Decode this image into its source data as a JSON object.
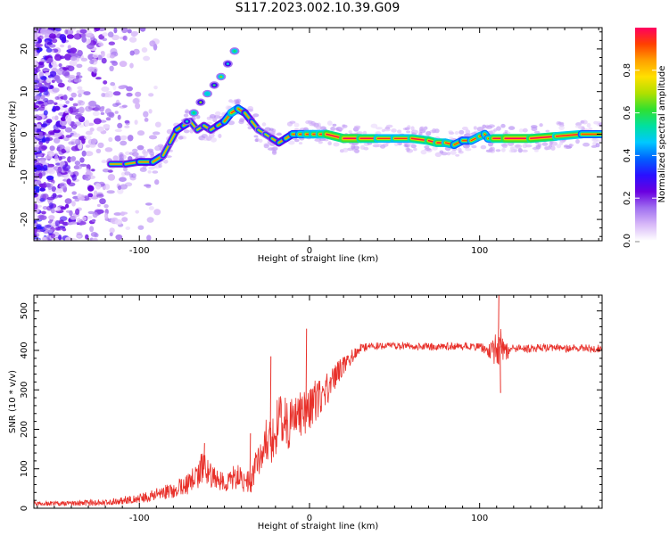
{
  "figure": {
    "title": "S117.2023.002.10.39.G09"
  },
  "chart_data": [
    {
      "type": "heatmap",
      "name": "spectrogram",
      "xlabel": "Height of straight line (km)",
      "ylabel": "Frequency (Hz)",
      "xlim": [
        -162,
        172
      ],
      "ylim": [
        -25,
        25
      ],
      "x_ticks": [
        -100,
        0,
        100
      ],
      "x_tick_labels": [
        "-100",
        "0",
        "100"
      ],
      "y_ticks": [
        -20,
        -10,
        0,
        10,
        20
      ],
      "y_tick_labels": [
        "-20",
        "-10",
        "0",
        "10",
        "20"
      ],
      "grid": false,
      "ridge": {
        "x": [
          -117,
          -108,
          -100,
          -92,
          -86,
          -82,
          -78,
          -74,
          -70,
          -66,
          -62,
          -58,
          -54,
          -50,
          -46,
          -42,
          -38,
          -34,
          -30,
          -26,
          -22,
          -18,
          -14,
          -10,
          -6,
          -2,
          2,
          6,
          10,
          20,
          30,
          40,
          50,
          60,
          70,
          75,
          80,
          85,
          90,
          95,
          100,
          103,
          105,
          108,
          115,
          130,
          145,
          160,
          172
        ],
        "y": [
          -7,
          -7,
          -6.5,
          -6.5,
          -5,
          -2,
          1,
          2,
          3,
          1,
          2,
          1,
          2,
          3,
          5,
          6,
          5,
          3,
          1,
          0,
          -1,
          -2,
          -1,
          0,
          0,
          0,
          0,
          0,
          0,
          -1,
          -1,
          -1,
          -1,
          -1,
          -1.5,
          -2,
          -2,
          -2.5,
          -1.5,
          -1.5,
          -0.5,
          0,
          -1,
          -1,
          -1,
          -1,
          -0.5,
          0,
          0
        ]
      },
      "ridge_intensity": [
        0.5,
        0.6,
        0.55,
        0.7,
        0.6,
        0.5,
        0.6,
        0.65,
        0.6,
        0.5,
        0.6,
        0.55,
        0.6,
        0.65,
        0.75,
        0.85,
        0.6,
        0.6,
        0.55,
        0.5,
        0.55,
        0.6,
        0.6,
        0.7,
        0.75,
        0.8,
        0.85,
        0.8,
        0.9,
        0.95,
        0.95,
        0.85,
        0.8,
        0.85,
        0.9,
        0.9,
        0.85,
        0.8,
        0.7,
        0.75,
        0.8,
        0.85,
        0.7,
        0.85,
        0.95,
        0.95,
        0.9,
        0.8,
        0.7
      ],
      "secondary_branch": {
        "x": [
          -72,
          -68,
          -64,
          -60,
          -56,
          -52,
          -48,
          -44
        ],
        "y": [
          3,
          5,
          7.5,
          9.5,
          11.5,
          13.5,
          16.5,
          19.5
        ]
      },
      "colorbar": {
        "label": "Normalized spectral amplitude",
        "range": [
          0,
          1
        ],
        "ticks": [
          0.0,
          0.2,
          0.4,
          0.6,
          0.8
        ],
        "tick_labels": [
          "0.0",
          "0.2",
          "0.4",
          "0.6",
          "0.8"
        ],
        "colors": [
          "#ffffff",
          "#d8b8f8",
          "#a070f0",
          "#6a00e0",
          "#2a10ff",
          "#0060ff",
          "#00c8ff",
          "#00e0a0",
          "#30e030",
          "#b0e000",
          "#ffe000",
          "#ffa000",
          "#ff4000",
          "#ff0060"
        ]
      }
    },
    {
      "type": "line",
      "name": "snr",
      "xlabel": "Height of straight line (km)",
      "ylabel": "SNR (10 * v/v)",
      "xlim": [
        -162,
        172
      ],
      "ylim": [
        0,
        540
      ],
      "x_ticks": [
        -100,
        0,
        100
      ],
      "x_tick_labels": [
        "-100",
        "0",
        "100"
      ],
      "y_ticks": [
        0,
        100,
        200,
        300,
        400,
        500
      ],
      "y_tick_labels": [
        "0",
        "100",
        "200",
        "300",
        "400",
        "500"
      ],
      "grid": false,
      "series": [
        {
          "color": "#e8302a",
          "x": [
            -162,
            -150,
            -140,
            -130,
            -120,
            -110,
            -100,
            -95,
            -90,
            -85,
            -80,
            -75,
            -70,
            -66,
            -63,
            -60,
            -57,
            -54,
            -50,
            -46,
            -42,
            -38,
            -34,
            -31,
            -28,
            -25,
            -22,
            -20,
            -18,
            -15,
            -12,
            -9,
            -6,
            -3,
            0,
            3,
            6,
            9,
            12,
            15,
            18,
            21,
            24,
            27,
            30,
            35,
            40,
            50,
            60,
            70,
            80,
            90,
            100,
            104,
            107,
            110,
            112,
            114,
            117,
            120,
            130,
            140,
            150,
            160,
            172
          ],
          "y": [
            12,
            12,
            12,
            14,
            15,
            20,
            25,
            28,
            35,
            40,
            48,
            55,
            65,
            85,
            100,
            95,
            80,
            70,
            65,
            75,
            80,
            70,
            65,
            120,
            150,
            170,
            180,
            200,
            215,
            210,
            220,
            230,
            240,
            250,
            255,
            270,
            285,
            300,
            315,
            335,
            350,
            365,
            380,
            395,
            405,
            412,
            410,
            412,
            410,
            408,
            410,
            410,
            408,
            405,
            400,
            405,
            410,
            400,
            395,
            405,
            405,
            408,
            405,
            405,
            405
          ],
          "noise": [
            6,
            6,
            6,
            8,
            8,
            10,
            12,
            14,
            16,
            18,
            22,
            25,
            28,
            40,
            45,
            35,
            30,
            25,
            25,
            30,
            32,
            30,
            28,
            45,
            55,
            60,
            65,
            70,
            70,
            75,
            75,
            70,
            70,
            65,
            60,
            55,
            50,
            45,
            40,
            35,
            30,
            25,
            20,
            15,
            12,
            10,
            10,
            10,
            10,
            10,
            10,
            10,
            10,
            15,
            25,
            50,
            60,
            40,
            15,
            12,
            10,
            10,
            10,
            10,
            10
          ]
        }
      ],
      "spikes": [
        {
          "x": -62,
          "y": 165
        },
        {
          "x": -35,
          "y": 190
        },
        {
          "x": -23,
          "y": 385
        },
        {
          "x": -2,
          "y": 455
        },
        {
          "x": 111,
          "y": 540
        },
        {
          "x": 112,
          "y": 292
        }
      ]
    }
  ]
}
